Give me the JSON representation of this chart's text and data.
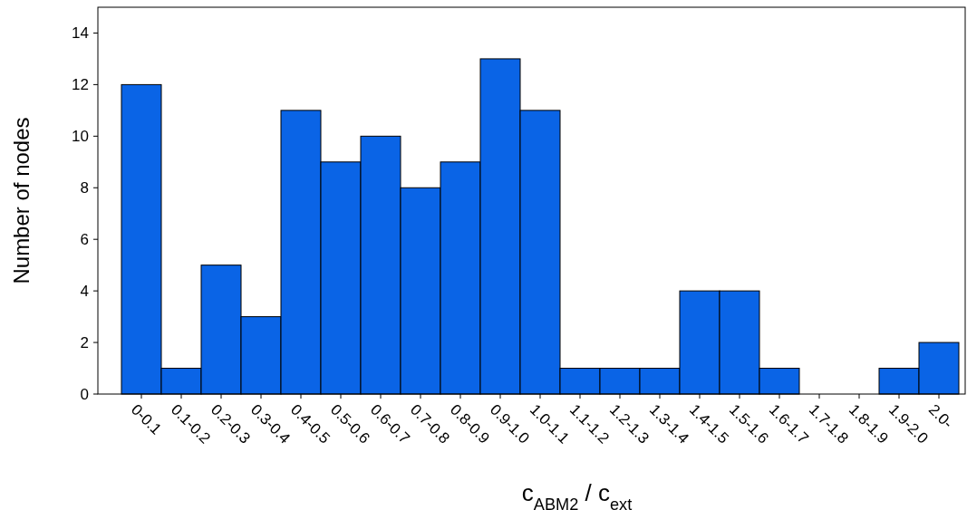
{
  "chart_data": {
    "type": "bar",
    "xlabel": "c$_{ABM2}$ / c$_{ext}$",
    "ylabel": "Number of nodes",
    "categories": [
      "0-0.1",
      "0.1-0.2",
      "0.2-0.3",
      "0.3-0.4",
      "0.4-0.5",
      "0.5-0.6",
      "0.6-0.7",
      "0.7-0.8",
      "0.8-0.9",
      "0.9-1.0",
      "1.0-1.1",
      "1.1-1.2",
      "1.2-1.3",
      "1.3-1.4",
      "1.4-1.5",
      "1.5-1.6",
      "1.6-1.7",
      "1.7-1.8",
      "1.8-1.9",
      "1.9-2.0",
      "2.0-"
    ],
    "values": [
      12,
      1,
      5,
      3,
      11,
      9,
      10,
      8,
      9,
      13,
      11,
      1,
      1,
      1,
      4,
      4,
      1,
      0,
      0,
      1,
      2
    ],
    "color": "#0a64e6",
    "ylim": [
      0,
      15
    ],
    "yticks": [
      0,
      2,
      4,
      6,
      8,
      10,
      12,
      14
    ],
    "grid": false
  }
}
